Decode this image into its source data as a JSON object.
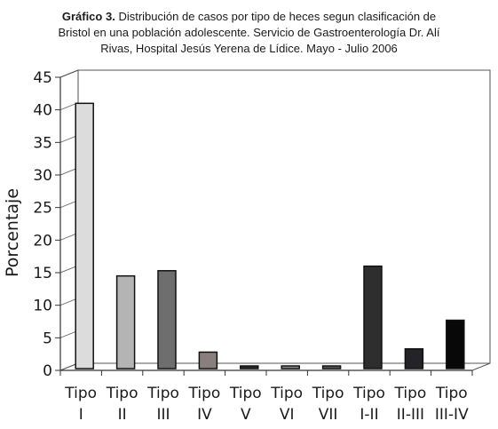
{
  "caption": {
    "label": "Gráfico 3.",
    "line1": "Distribución de casos por tipo de heces segun clasificación de",
    "line2": "Bristol en una población adolescente. Servicio de Gastroenterología Dr. Alí",
    "line3": "Rivas, Hospital Jesús Yerena de Lídice. Mayo - Julio 2006"
  },
  "chart_data": {
    "type": "bar",
    "title": "Gráfico 3. Distribución de casos por tipo de heces segun clasificación de Bristol en una población adolescente. Servicio de Gastroenterología Dr. Alí Rivas, Hospital Jesús Yerena de Lídice. Mayo - Julio 2006",
    "xlabel": "",
    "ylabel": "Porcentaje",
    "ylim": [
      0,
      45
    ],
    "yticks": [
      0,
      5,
      10,
      15,
      20,
      25,
      30,
      35,
      40,
      45
    ],
    "grid": true,
    "categories": [
      [
        "Tipo",
        "I"
      ],
      [
        "Tipo",
        "II"
      ],
      [
        "Tipo",
        "III"
      ],
      [
        "Tipo",
        "IV"
      ],
      [
        "Tipo",
        "V"
      ],
      [
        "Tipo",
        "VI"
      ],
      [
        "Tipo",
        "VII"
      ],
      [
        "Tipo",
        "I-II"
      ],
      [
        "Tipo",
        "II-III"
      ],
      [
        "Tipo",
        "III-IV"
      ]
    ],
    "values": [
      41,
      14.5,
      15.3,
      2.8,
      0.6,
      0.6,
      0.6,
      16,
      3.3,
      7.7
    ],
    "colors": [
      "#dcdcdc",
      "#b4b4b4",
      "#6e6e6e",
      "#8a7f7f",
      "#2a2a2a",
      "#8c8c8c",
      "#5a5a5a",
      "#2e2e2e",
      "#232328",
      "#080808"
    ]
  }
}
